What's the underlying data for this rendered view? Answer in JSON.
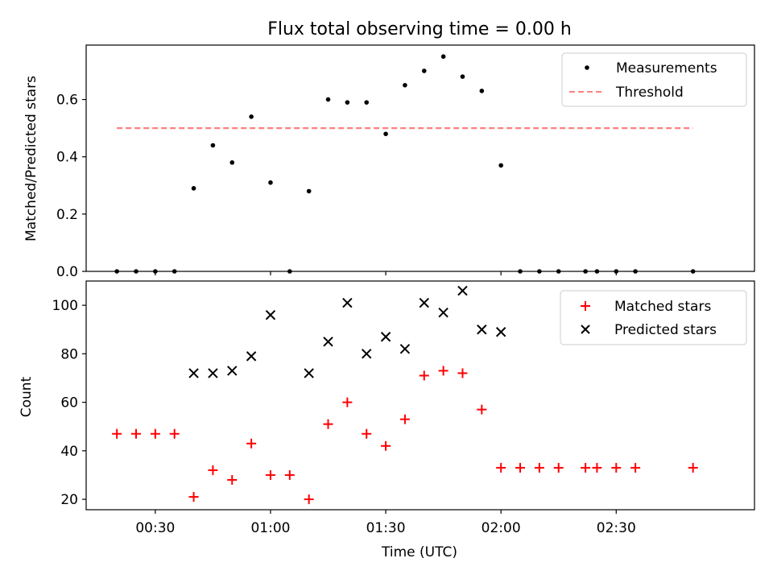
{
  "chart_data": [
    {
      "type": "scatter",
      "title": "Flux total observing time = 0.00 h",
      "xlabel": "",
      "ylabel": "Matched/Predicted stars",
      "ylim": [
        0,
        0.79
      ],
      "xlim": [
        "00:12",
        "03:06"
      ],
      "grid": false,
      "legend_position": "top-right",
      "yticks": [
        0.0,
        0.2,
        0.4,
        0.6
      ],
      "yticklabels": [
        "0.0",
        "0.2",
        "0.4",
        "0.6"
      ],
      "xticks": [
        "00:30",
        "01:00",
        "01:30",
        "02:00",
        "02:30"
      ],
      "series": [
        {
          "name": "Measurements",
          "kind": "points",
          "color": "#000000",
          "x": [
            "00:20",
            "00:25",
            "00:30",
            "00:35",
            "00:40",
            "00:45",
            "00:50",
            "00:55",
            "01:00",
            "01:05",
            "01:10",
            "01:15",
            "01:20",
            "01:25",
            "01:30",
            "01:35",
            "01:40",
            "01:45",
            "01:50",
            "01:55",
            "02:00",
            "02:05",
            "02:10",
            "02:15",
            "02:22",
            "02:25",
            "02:30",
            "02:35",
            "02:50"
          ],
          "y": [
            0,
            0,
            0,
            0,
            0.29,
            0.44,
            0.38,
            0.54,
            0.31,
            0,
            0.28,
            0.6,
            0.59,
            0.59,
            0.48,
            0.65,
            0.7,
            0.75,
            0.68,
            0.63,
            0.37,
            0,
            0,
            0,
            0,
            0,
            0,
            0,
            0
          ]
        },
        {
          "name": "Threshold",
          "kind": "dashed-line",
          "color": "#ff7f7f",
          "x": [
            "00:20",
            "02:50"
          ],
          "y": [
            0.5,
            0.5
          ]
        }
      ]
    },
    {
      "type": "scatter",
      "title": "",
      "xlabel": "Time (UTC)",
      "ylabel": "Count",
      "ylim": [
        15.7,
        110
      ],
      "xlim": [
        "00:12",
        "03:06"
      ],
      "grid": false,
      "legend_position": "top-right",
      "yticks": [
        20,
        40,
        60,
        80,
        100
      ],
      "yticklabels": [
        "20",
        "40",
        "60",
        "80",
        "100"
      ],
      "xticks": [
        "00:30",
        "01:00",
        "01:30",
        "02:00",
        "02:30"
      ],
      "xticklabels": [
        "00:30",
        "01:00",
        "01:30",
        "02:00",
        "02:30"
      ],
      "series": [
        {
          "name": "Matched stars",
          "kind": "plus",
          "color": "#ff0000",
          "x": [
            "00:20",
            "00:25",
            "00:30",
            "00:35",
            "00:40",
            "00:45",
            "00:50",
            "00:55",
            "01:00",
            "01:05",
            "01:10",
            "01:15",
            "01:20",
            "01:25",
            "01:30",
            "01:35",
            "01:40",
            "01:45",
            "01:50",
            "01:55",
            "02:00",
            "02:05",
            "02:10",
            "02:15",
            "02:22",
            "02:25",
            "02:30",
            "02:35",
            "02:50"
          ],
          "y": [
            47,
            47,
            47,
            47,
            21,
            32,
            28,
            43,
            30,
            30,
            20,
            51,
            60,
            47,
            42,
            53,
            71,
            73,
            72,
            57,
            33,
            33,
            33,
            33,
            33,
            33,
            33,
            33,
            33
          ]
        },
        {
          "name": "Predicted stars",
          "kind": "cross",
          "color": "#000000",
          "x": [
            "00:40",
            "00:45",
            "00:50",
            "00:55",
            "01:00",
            "01:10",
            "01:15",
            "01:20",
            "01:25",
            "01:30",
            "01:35",
            "01:40",
            "01:45",
            "01:50",
            "01:55",
            "02:00"
          ],
          "y": [
            72,
            72,
            73,
            79,
            96,
            72,
            85,
            101,
            80,
            87,
            82,
            101,
            97,
            106,
            90,
            89
          ]
        }
      ]
    }
  ]
}
